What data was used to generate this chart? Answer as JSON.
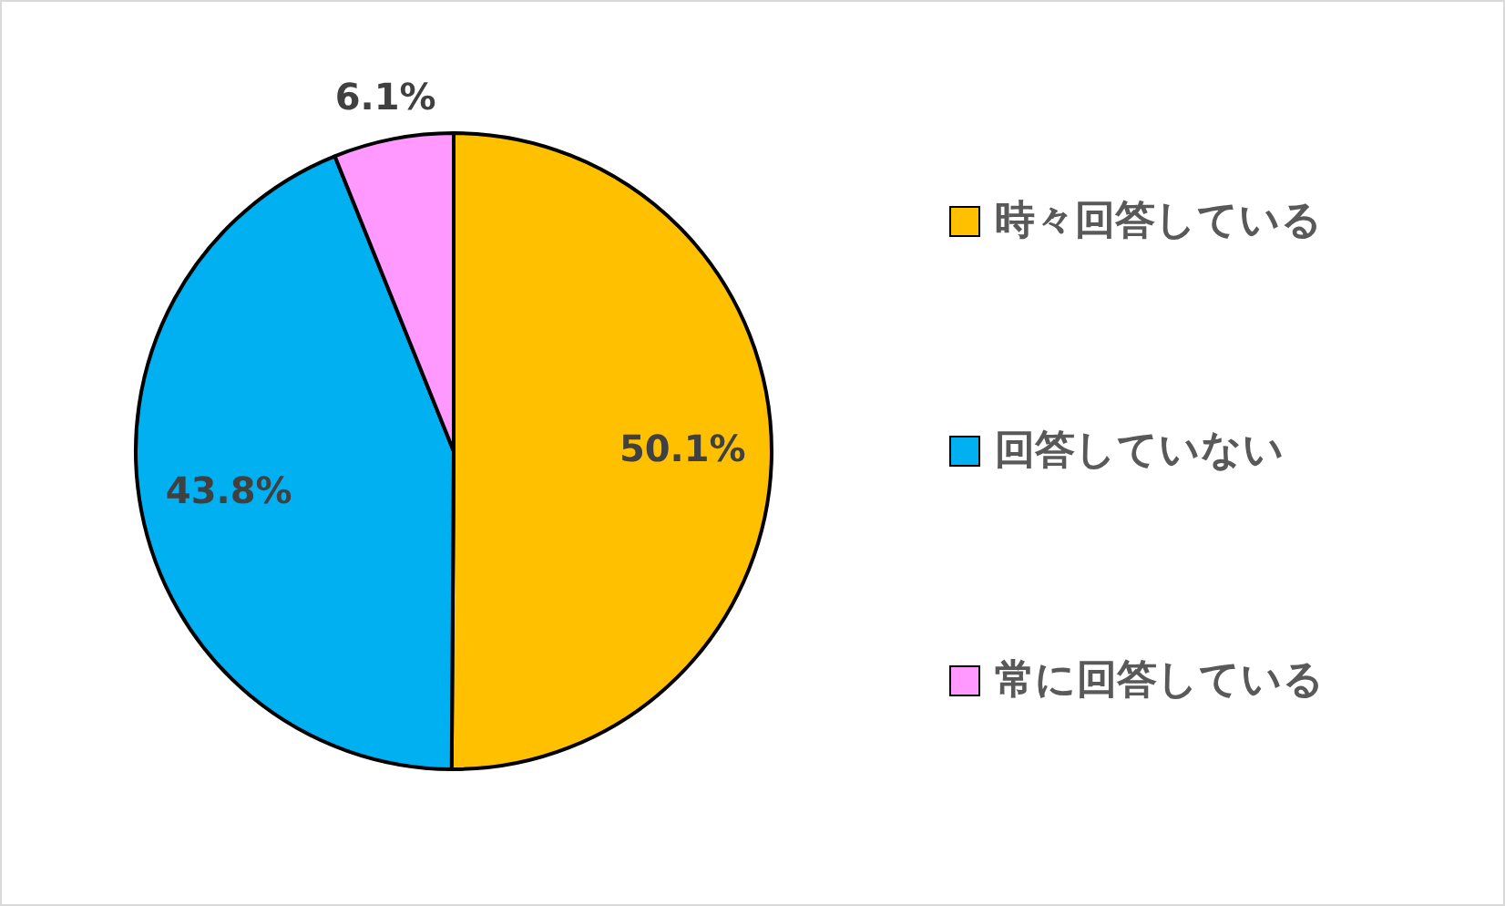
{
  "chart_data": {
    "type": "pie",
    "categories": [
      "時々回答している",
      "回答していない",
      "常に回答している"
    ],
    "values": [
      50.1,
      43.8,
      6.1
    ],
    "value_labels": [
      "50.1%",
      "43.8%",
      "6.1%"
    ],
    "colors": [
      "#ffc000",
      "#00b0f0",
      "#ff99ff"
    ],
    "legend": "right"
  }
}
